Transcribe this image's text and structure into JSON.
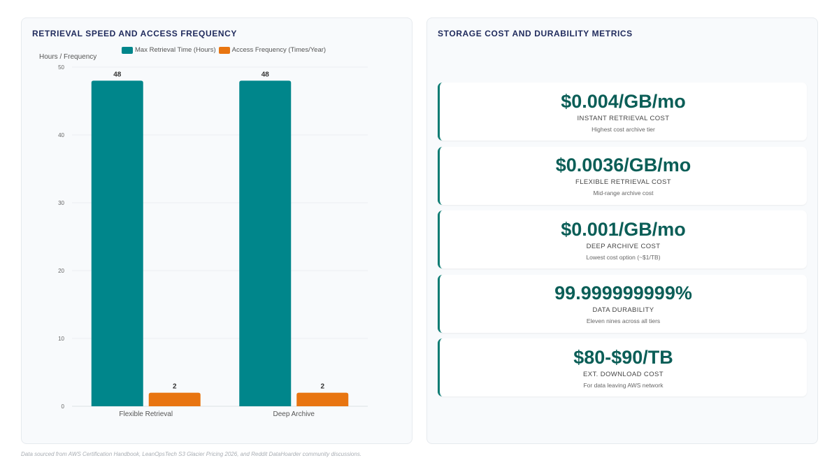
{
  "left_panel": {
    "title": "RETRIEVAL SPEED AND ACCESS FREQUENCY"
  },
  "chart_data": {
    "type": "bar",
    "ylabel": "Hours / Frequency",
    "ylim": [
      0,
      50
    ],
    "yticks": [
      0,
      10,
      20,
      30,
      40,
      50
    ],
    "categories": [
      "Flexible Retrieval",
      "Deep Archive"
    ],
    "series": [
      {
        "name": "Max Retrieval Time (Hours)",
        "color": "#00868b",
        "values": [
          48,
          48
        ]
      },
      {
        "name": "Access Frequency (Times/Year)",
        "color": "#e87511",
        "values": [
          2,
          2
        ]
      }
    ],
    "legend_position": "top",
    "grid": true
  },
  "right_panel": {
    "title": "STORAGE COST AND DURABILITY METRICS",
    "cards": [
      {
        "value": "$0.004/GB/mo",
        "label": "INSTANT RETRIEVAL COST",
        "desc": "Highest cost archive tier"
      },
      {
        "value": "$0.0036/GB/mo",
        "label": "FLEXIBLE RETRIEVAL COST",
        "desc": "Mid-range archive cost"
      },
      {
        "value": "$0.001/GB/mo",
        "label": "DEEP ARCHIVE COST",
        "desc": "Lowest cost option (~$1/TB)"
      },
      {
        "value": "99.999999999%",
        "label": "DATA DURABILITY",
        "desc": "Eleven nines across all tiers"
      },
      {
        "value": "$80-$90/TB",
        "label": "EXT. DOWNLOAD COST",
        "desc": "For data leaving AWS network"
      }
    ]
  },
  "footer": {
    "text": "Data sourced from AWS Certification Handbook, LeanOpsTech S3 Glacier Pricing 2026, and Reddit DataHoarder community discussions."
  },
  "colors": {
    "accent": "#0b5e57",
    "title": "#1f2a5c"
  }
}
